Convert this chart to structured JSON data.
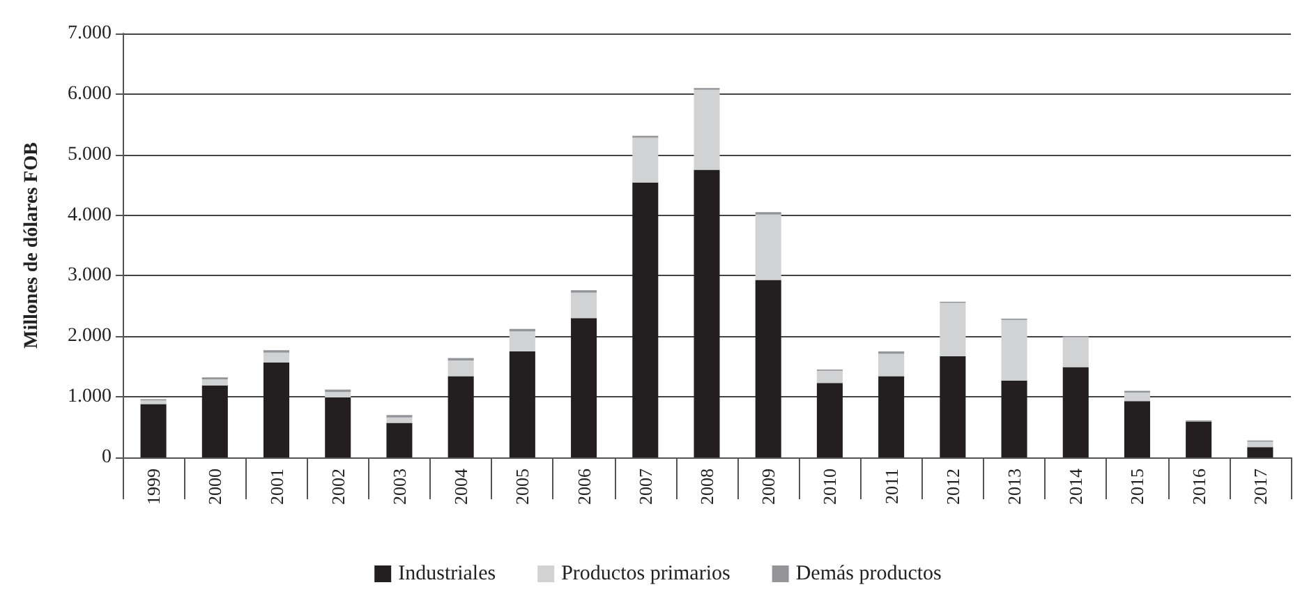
{
  "chart_data": {
    "type": "bar",
    "stacked": true,
    "ylabel": "Millones de dólares FOB",
    "categories": [
      "1999",
      "2000",
      "2001",
      "2002",
      "2003",
      "2004",
      "2005",
      "2006",
      "2007",
      "2008",
      "2009",
      "2010",
      "2011",
      "2012",
      "2013",
      "2014",
      "2015",
      "2016",
      "2017"
    ],
    "series": [
      {
        "name": "Industriales",
        "color": "#231f20",
        "values": [
          880,
          1190,
          1570,
          990,
          570,
          1340,
          1750,
          2300,
          4540,
          4750,
          2930,
          1230,
          1340,
          1670,
          1270,
          1490,
          930,
          590,
          170
        ]
      },
      {
        "name": "Productos primarios",
        "color": "#d1d2d4",
        "values": [
          60,
          100,
          160,
          90,
          90,
          260,
          330,
          420,
          740,
          1320,
          1080,
          200,
          370,
          880,
          1000,
          500,
          140,
          0,
          90
        ]
      },
      {
        "name": "Demás productos",
        "color": "#939598",
        "values": [
          20,
          30,
          40,
          40,
          40,
          40,
          40,
          40,
          30,
          30,
          40,
          20,
          40,
          20,
          20,
          10,
          30,
          20,
          20
        ]
      }
    ],
    "ylim": [
      0,
      7000
    ],
    "yticks": [
      {
        "value": 0,
        "label": "0"
      },
      {
        "value": 1000,
        "label": "1.000"
      },
      {
        "value": 2000,
        "label": "2.000"
      },
      {
        "value": 3000,
        "label": "3.000"
      },
      {
        "value": 4000,
        "label": "4.000"
      },
      {
        "value": 5000,
        "label": "5.000"
      },
      {
        "value": 6000,
        "label": "6.000"
      },
      {
        "value": 7000,
        "label": "7.000"
      }
    ],
    "grid": "y",
    "legend": "bottom"
  }
}
